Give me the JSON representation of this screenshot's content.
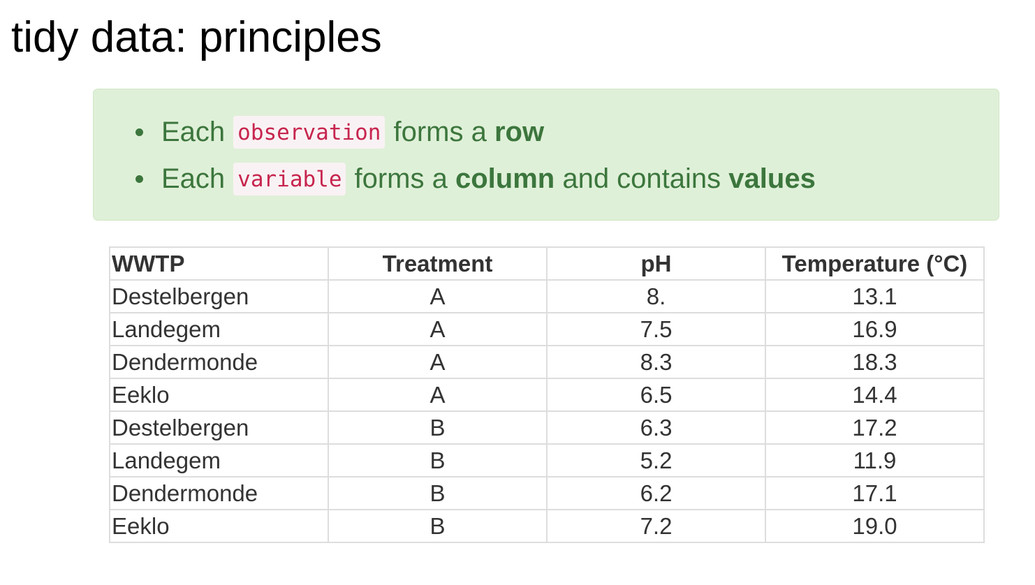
{
  "title": "tidy data: principles",
  "callout": {
    "background": "#dff0d8",
    "text_color": "#3c763d",
    "code_color": "#c7254e",
    "items": [
      {
        "prefix": "Each",
        "code": "observation",
        "middle": "forms a",
        "bold1": "row",
        "middle2": "",
        "bold2": ""
      },
      {
        "prefix": "Each",
        "code": "variable",
        "middle": "forms a",
        "bold1": "column",
        "middle2": "and contains",
        "bold2": "values"
      }
    ]
  },
  "table": {
    "headers": [
      "WWTP",
      "Treatment",
      "pH",
      "Temperature (°C)"
    ],
    "rows": [
      [
        "Destelbergen",
        "A",
        "8.",
        "13.1"
      ],
      [
        "Landegem",
        "A",
        "7.5",
        "16.9"
      ],
      [
        "Dendermonde",
        "A",
        "8.3",
        "18.3"
      ],
      [
        "Eeklo",
        "A",
        "6.5",
        "14.4"
      ],
      [
        "Destelbergen",
        "B",
        "6.3",
        "17.2"
      ],
      [
        "Landegem",
        "B",
        "5.2",
        "11.9"
      ],
      [
        "Dendermonde",
        "B",
        "6.2",
        "17.1"
      ],
      [
        "Eeklo",
        "B",
        "7.2",
        "19.0"
      ]
    ]
  }
}
